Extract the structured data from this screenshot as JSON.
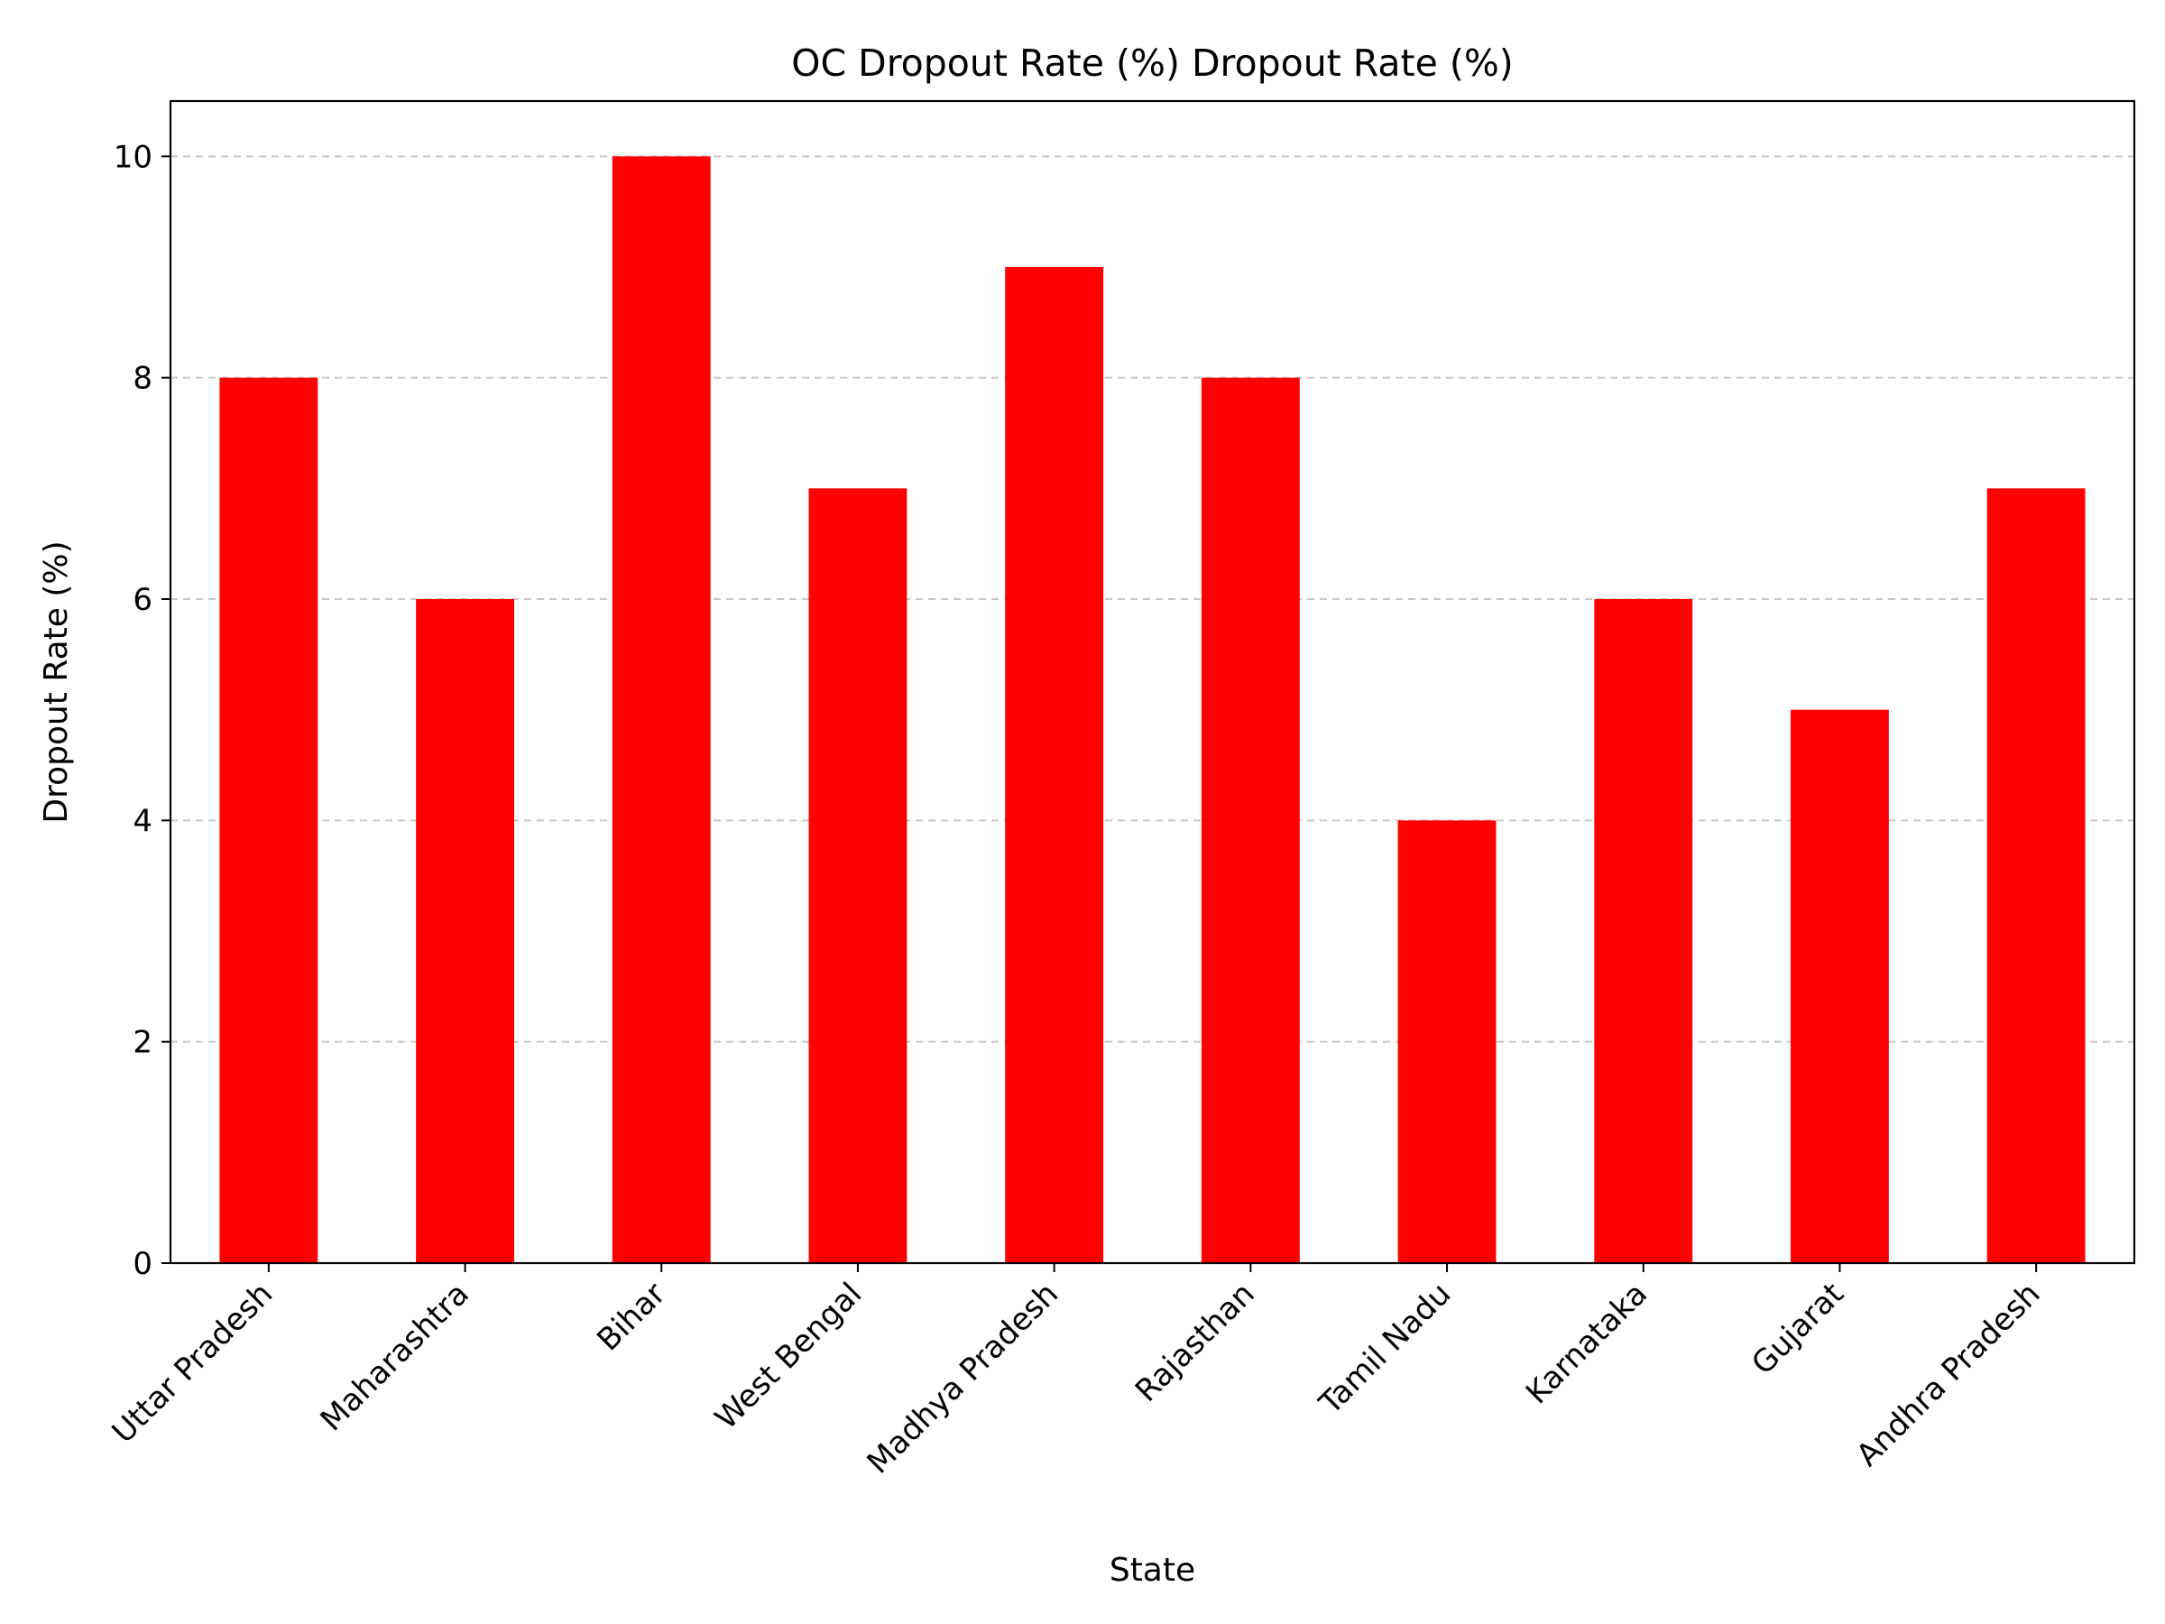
{
  "chart_data": {
    "type": "bar",
    "title": "OC Dropout Rate (%) Dropout Rate (%)",
    "xlabel": "State",
    "ylabel": "Dropout Rate (%)",
    "categories": [
      "Uttar Pradesh",
      "Maharashtra",
      "Bihar",
      "West Bengal",
      "Madhya Pradesh",
      "Rajasthan",
      "Tamil Nadu",
      "Karnataka",
      "Gujarat",
      "Andhra Pradesh"
    ],
    "values": [
      8,
      6,
      10,
      7,
      9,
      8,
      4,
      6,
      5,
      7
    ],
    "ylim": [
      0,
      10.5
    ],
    "yticks": [
      0,
      2,
      4,
      6,
      8,
      10
    ],
    "grid": "y-dashed",
    "bar_color": "#ff0000",
    "grid_color": "#c8c8c8"
  }
}
